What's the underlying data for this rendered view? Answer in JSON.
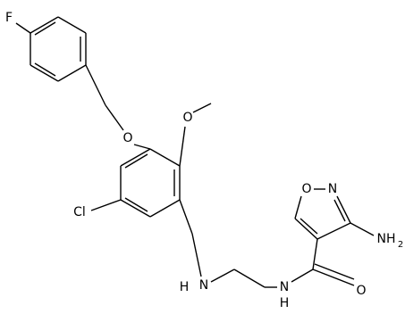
{
  "atoms": {
    "fluorine": "F",
    "benzyl_oxygen": "O",
    "methoxy_oxygen": "O",
    "chlorine": "Cl",
    "amine_h": "H",
    "amine_n": "N",
    "amide_n": "N",
    "amide_h": "H",
    "carbonyl_oxygen": "O",
    "ring_oxygen": "O",
    "ring_nitrogen": "N",
    "amino": {
      "text": "NH",
      "subscript": "2"
    }
  }
}
